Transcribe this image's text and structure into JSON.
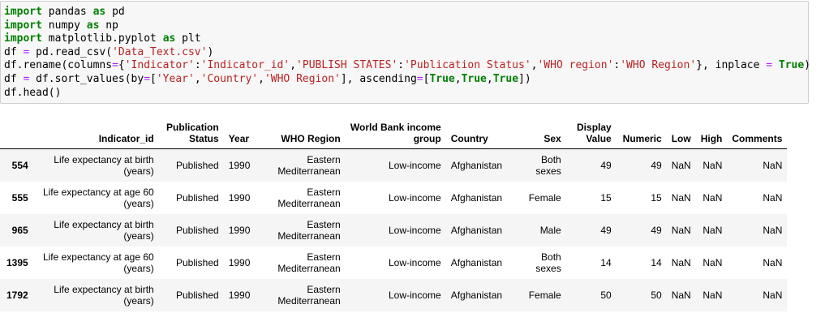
{
  "code_lines": [
    [
      {
        "t": "kw",
        "v": "import"
      },
      {
        "t": "p",
        "v": " pandas "
      },
      {
        "t": "kw",
        "v": "as"
      },
      {
        "t": "p",
        "v": " pd"
      }
    ],
    [
      {
        "t": "kw",
        "v": "import"
      },
      {
        "t": "p",
        "v": " numpy "
      },
      {
        "t": "kw",
        "v": "as"
      },
      {
        "t": "p",
        "v": " np"
      }
    ],
    [
      {
        "t": "kw",
        "v": "import"
      },
      {
        "t": "p",
        "v": " matplotlib.pyplot "
      },
      {
        "t": "kw",
        "v": "as"
      },
      {
        "t": "p",
        "v": " plt"
      }
    ],
    [
      {
        "t": "p",
        "v": "df "
      },
      {
        "t": "op",
        "v": "="
      },
      {
        "t": "p",
        "v": " pd.read_csv("
      },
      {
        "t": "str",
        "v": "'Data_Text.csv'"
      },
      {
        "t": "p",
        "v": ")"
      }
    ],
    [
      {
        "t": "p",
        "v": "df.rename(columns"
      },
      {
        "t": "op",
        "v": "="
      },
      {
        "t": "p",
        "v": "{"
      },
      {
        "t": "str",
        "v": "'Indicator'"
      },
      {
        "t": "p",
        "v": ":"
      },
      {
        "t": "str",
        "v": "'Indicator_id'"
      },
      {
        "t": "p",
        "v": ","
      },
      {
        "t": "str",
        "v": "'PUBLISH STATES'"
      },
      {
        "t": "p",
        "v": ":"
      },
      {
        "t": "str",
        "v": "'Publication Status'"
      },
      {
        "t": "p",
        "v": ","
      },
      {
        "t": "str",
        "v": "'WHO region'"
      },
      {
        "t": "p",
        "v": ":"
      },
      {
        "t": "str",
        "v": "'WHO Region'"
      },
      {
        "t": "p",
        "v": "}, inplace "
      },
      {
        "t": "op",
        "v": "="
      },
      {
        "t": "p",
        "v": " "
      },
      {
        "t": "kw",
        "v": "True"
      },
      {
        "t": "p",
        "v": ")"
      }
    ],
    [
      {
        "t": "p",
        "v": "df "
      },
      {
        "t": "op",
        "v": "="
      },
      {
        "t": "p",
        "v": " df.sort_values(by"
      },
      {
        "t": "op",
        "v": "="
      },
      {
        "t": "p",
        "v": "["
      },
      {
        "t": "str",
        "v": "'Year'"
      },
      {
        "t": "p",
        "v": ","
      },
      {
        "t": "str",
        "v": "'Country'"
      },
      {
        "t": "p",
        "v": ","
      },
      {
        "t": "str",
        "v": "'WHO Region'"
      },
      {
        "t": "p",
        "v": "], ascending"
      },
      {
        "t": "op",
        "v": "="
      },
      {
        "t": "p",
        "v": "["
      },
      {
        "t": "kw",
        "v": "True"
      },
      {
        "t": "p",
        "v": ","
      },
      {
        "t": "kw",
        "v": "True"
      },
      {
        "t": "p",
        "v": ","
      },
      {
        "t": "kw",
        "v": "True"
      },
      {
        "t": "p",
        "v": "])"
      }
    ],
    [
      {
        "t": "p",
        "v": "df.head()"
      }
    ]
  ],
  "table": {
    "columns": [
      {
        "lines": [
          "Indicator_id"
        ]
      },
      {
        "lines": [
          "Publication",
          "Status"
        ]
      },
      {
        "lines": [
          "Year"
        ]
      },
      {
        "lines": [
          "WHO Region"
        ]
      },
      {
        "lines": [
          "World Bank income",
          "group"
        ]
      },
      {
        "lines": [
          "Country"
        ]
      },
      {
        "lines": [
          "Sex"
        ]
      },
      {
        "lines": [
          "Display",
          "Value"
        ]
      },
      {
        "lines": [
          "Numeric"
        ]
      },
      {
        "lines": [
          "Low"
        ]
      },
      {
        "lines": [
          "High"
        ]
      },
      {
        "lines": [
          "Comments"
        ]
      }
    ],
    "rows": [
      {
        "index": "554",
        "cells": [
          [
            "Life expectancy at birth",
            "(years)"
          ],
          [
            "Published"
          ],
          [
            "1990"
          ],
          [
            "Eastern",
            "Mediterranean"
          ],
          [
            "Low-income"
          ],
          [
            "Afghanistan"
          ],
          [
            "Both",
            "sexes"
          ],
          [
            "49"
          ],
          [
            "49"
          ],
          [
            "NaN"
          ],
          [
            "NaN"
          ],
          [
            "NaN"
          ]
        ]
      },
      {
        "index": "555",
        "cells": [
          [
            "Life expectancy at age 60",
            "(years)"
          ],
          [
            "Published"
          ],
          [
            "1990"
          ],
          [
            "Eastern",
            "Mediterranean"
          ],
          [
            "Low-income"
          ],
          [
            "Afghanistan"
          ],
          [
            "Female"
          ],
          [
            "15"
          ],
          [
            "15"
          ],
          [
            "NaN"
          ],
          [
            "NaN"
          ],
          [
            "NaN"
          ]
        ]
      },
      {
        "index": "965",
        "cells": [
          [
            "Life expectancy at birth",
            "(years)"
          ],
          [
            "Published"
          ],
          [
            "1990"
          ],
          [
            "Eastern",
            "Mediterranean"
          ],
          [
            "Low-income"
          ],
          [
            "Afghanistan"
          ],
          [
            "Male"
          ],
          [
            "49"
          ],
          [
            "49"
          ],
          [
            "NaN"
          ],
          [
            "NaN"
          ],
          [
            "NaN"
          ]
        ]
      },
      {
        "index": "1395",
        "cells": [
          [
            "Life expectancy at age 60",
            "(years)"
          ],
          [
            "Published"
          ],
          [
            "1990"
          ],
          [
            "Eastern",
            "Mediterranean"
          ],
          [
            "Low-income"
          ],
          [
            "Afghanistan"
          ],
          [
            "Both",
            "sexes"
          ],
          [
            "14"
          ],
          [
            "14"
          ],
          [
            "NaN"
          ],
          [
            "NaN"
          ],
          [
            "NaN"
          ]
        ]
      },
      {
        "index": "1792",
        "cells": [
          [
            "Life expectancy at birth",
            "(years)"
          ],
          [
            "Published"
          ],
          [
            "1990"
          ],
          [
            "Eastern",
            "Mediterranean"
          ],
          [
            "Low-income"
          ],
          [
            "Afghanistan"
          ],
          [
            "Female"
          ],
          [
            "50"
          ],
          [
            "50"
          ],
          [
            "NaN"
          ],
          [
            "NaN"
          ],
          [
            "NaN"
          ]
        ]
      }
    ]
  }
}
